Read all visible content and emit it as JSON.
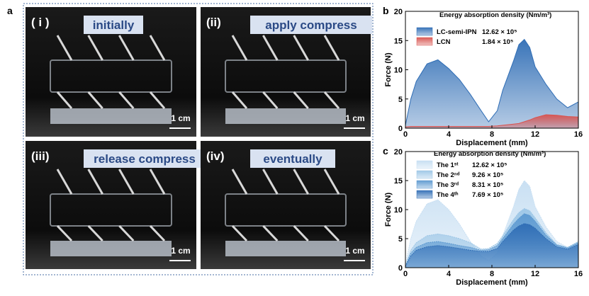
{
  "photos": {
    "panel_label": "a",
    "items": [
      {
        "index": "( i )",
        "caption": "initially",
        "scale": "1 cm"
      },
      {
        "index": "(ii)",
        "caption": "apply compress",
        "scale": "1 cm"
      },
      {
        "index": "(iii)",
        "caption": "release compress",
        "scale": "1 cm"
      },
      {
        "index": "(iv)",
        "caption": "eventually",
        "scale": "1 cm"
      }
    ]
  },
  "chart_data": [
    {
      "type": "area",
      "panel_label": "b",
      "legend_title": "Energy absorption density (Nm/m³)",
      "xlabel": "Displacement (mm)",
      "ylabel": "Force (N)",
      "xlim": [
        0,
        16
      ],
      "xticks": [
        0,
        4,
        8,
        12,
        16
      ],
      "ylim": [
        0,
        20
      ],
      "yticks": [
        0,
        5,
        10,
        15,
        20
      ],
      "x": [
        0,
        0.5,
        1,
        2,
        3,
        4,
        5,
        6,
        7,
        7.7,
        8.5,
        9,
        10,
        10.5,
        11,
        11.5,
        12,
        13,
        14,
        15,
        16
      ],
      "series": [
        {
          "name": "LC-semi-IPN",
          "legend_value": "12.62 × 10⁵",
          "color": "#2f6db5",
          "values": [
            0.5,
            5,
            8,
            11,
            11.7,
            10.2,
            8.3,
            5.8,
            3,
            1.1,
            3,
            6.5,
            11.5,
            14.3,
            15.2,
            13.8,
            10.5,
            7.5,
            5,
            3.5,
            4.5
          ]
        },
        {
          "name": "LCN",
          "legend_value": "1.84 × 10⁵",
          "color": "#d9534f",
          "values": [
            0.2,
            0.3,
            0.3,
            0.3,
            0.3,
            0.3,
            0.3,
            0.3,
            0.3,
            0.3,
            0.4,
            0.5,
            0.7,
            0.8,
            1.1,
            1.4,
            1.8,
            2.3,
            2.2,
            2,
            1.9
          ]
        }
      ]
    },
    {
      "type": "area",
      "panel_label": "c",
      "legend_title": "Energy absorption density (Nm/m³)",
      "xlabel": "Displacement (mm)",
      "ylabel": "Force (N)",
      "xlim": [
        0,
        16
      ],
      "xticks": [
        0,
        4,
        8,
        12,
        16
      ],
      "ylim": [
        0,
        20
      ],
      "yticks": [
        0,
        5,
        10,
        15,
        20
      ],
      "x": [
        0,
        0.5,
        1,
        2,
        3,
        4,
        5,
        6,
        7,
        7.7,
        8.5,
        9,
        10,
        10.5,
        11,
        11.5,
        12,
        13,
        14,
        15,
        16
      ],
      "series": [
        {
          "name": "The 1ˢᵗ",
          "legend_value": "12.62 × 10⁵",
          "color": "#c6def2",
          "values": [
            0.5,
            5,
            8,
            11,
            11.7,
            10,
            7.5,
            4.5,
            2,
            1.2,
            2.5,
            5.5,
            10.5,
            13.5,
            15,
            14,
            10.5,
            7,
            4.5,
            3.5,
            4.5
          ]
        },
        {
          "name": "The 2ⁿᵈ",
          "legend_value": "9.26 × 10⁵",
          "color": "#9cc6e6",
          "values": [
            0.3,
            3,
            4.3,
            5.5,
            5.8,
            5.5,
            5,
            4.3,
            3.2,
            3.3,
            4.2,
            5.5,
            8.3,
            9.5,
            10.2,
            9.8,
            8.6,
            6,
            4,
            3.5,
            4.5
          ]
        },
        {
          "name": "The 3ʳᵈ",
          "legend_value": "8.31 × 10⁵",
          "color": "#5b98d0",
          "values": [
            0.3,
            2.5,
            3.5,
            4.3,
            4.5,
            4.2,
            3.8,
            3.5,
            3,
            3.1,
            3.8,
            5,
            7.5,
            8.5,
            9.3,
            9,
            8,
            5.6,
            3.9,
            3.4,
            4.3
          ]
        },
        {
          "name": "The 4ᵗʰ",
          "legend_value": "7.69 × 10⁵",
          "color": "#2f6db5",
          "values": [
            0.2,
            2,
            3,
            3.6,
            3.8,
            3.6,
            3.3,
            3,
            2.8,
            2.8,
            3.3,
            4.5,
            6.5,
            7.2,
            7.6,
            7.4,
            6.8,
            5,
            3.6,
            3.2,
            4
          ]
        }
      ]
    }
  ]
}
